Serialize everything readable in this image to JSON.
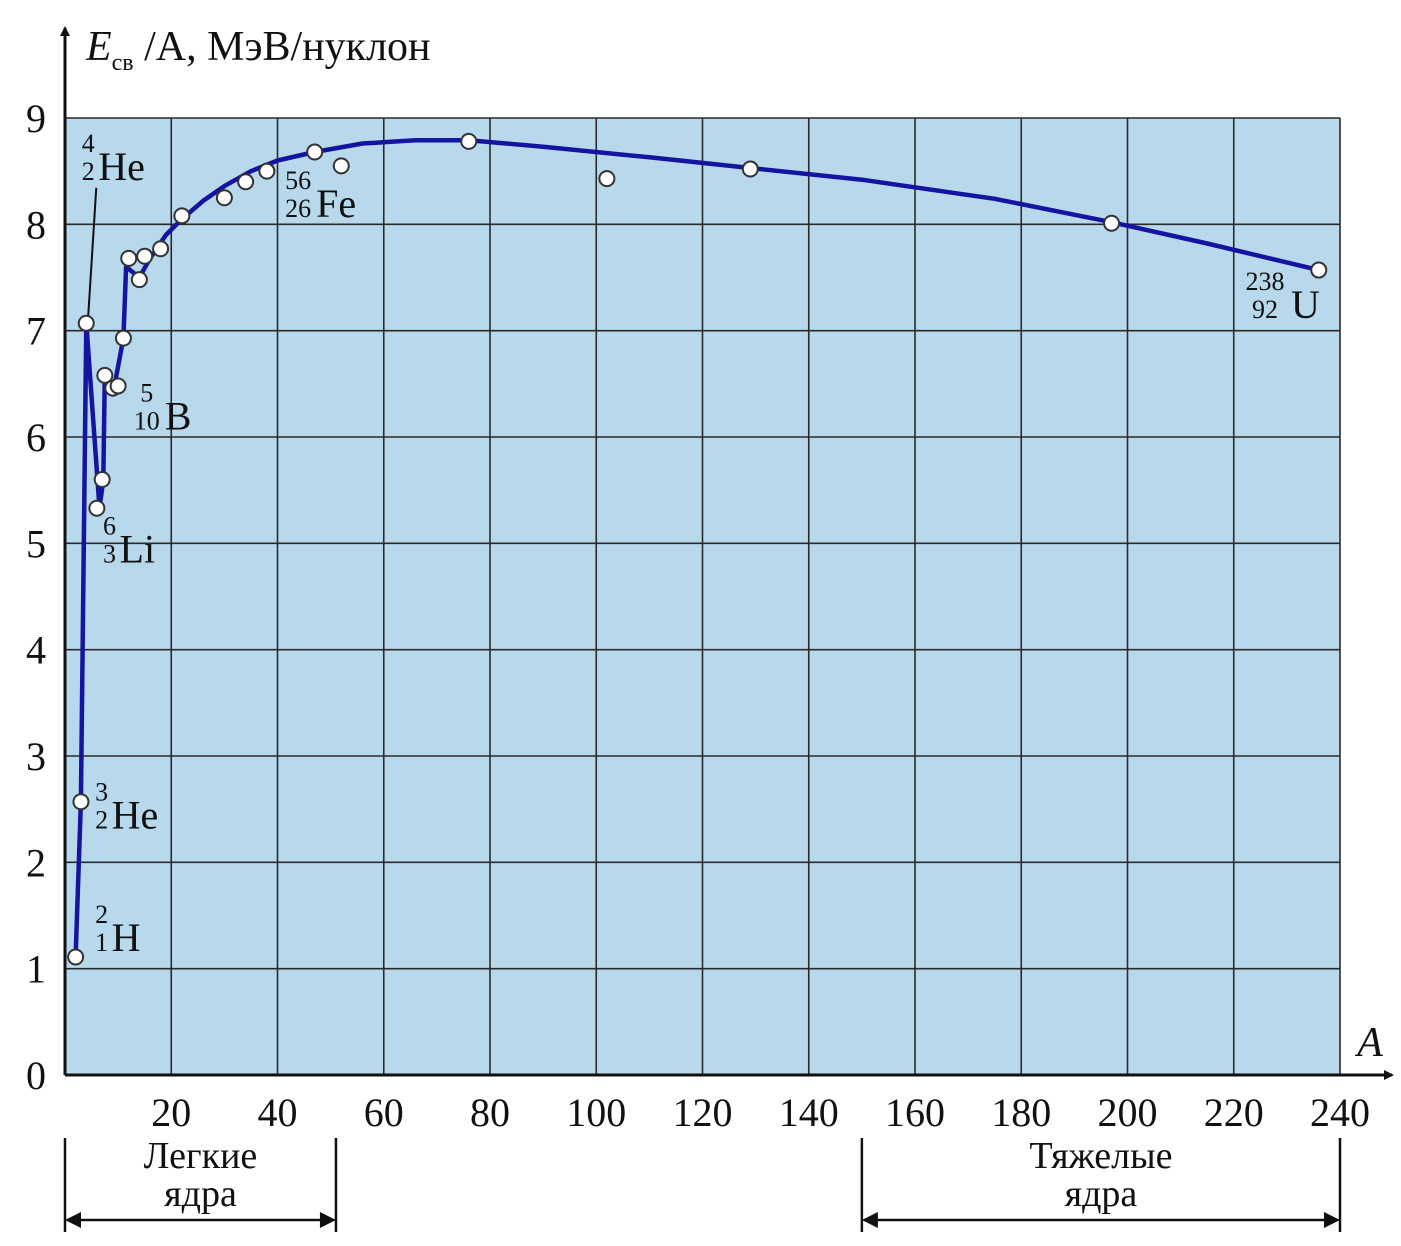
{
  "chart_data": {
    "type": "scatter",
    "title": "",
    "ylabel": {
      "main": "E",
      "sub": "св",
      "rest": " /A, МэВ/нуклон"
    },
    "xlabel": "A",
    "xlim": [
      0,
      240
    ],
    "ylim": [
      0,
      9
    ],
    "xticks": [
      20,
      40,
      60,
      80,
      100,
      120,
      140,
      160,
      180,
      200,
      220,
      240
    ],
    "yticks": [
      0,
      1,
      2,
      3,
      4,
      5,
      6,
      7,
      8,
      9
    ],
    "grid": true,
    "colors": {
      "plot_bg": "#b8d8ec",
      "grid": "#2a2a2a",
      "curve": "#1414a0",
      "marker_fill": "#ffffff",
      "marker_edge": "#333333"
    },
    "points": [
      {
        "x": 2,
        "y": 1.11
      },
      {
        "x": 3,
        "y": 2.57
      },
      {
        "x": 4,
        "y": 7.07
      },
      {
        "x": 6,
        "y": 5.33
      },
      {
        "x": 7,
        "y": 5.6
      },
      {
        "x": 7.5,
        "y": 6.58
      },
      {
        "x": 9,
        "y": 6.46
      },
      {
        "x": 10,
        "y": 6.48
      },
      {
        "x": 11,
        "y": 6.93
      },
      {
        "x": 12,
        "y": 7.68
      },
      {
        "x": 14,
        "y": 7.48
      },
      {
        "x": 15,
        "y": 7.7
      },
      {
        "x": 18,
        "y": 7.77
      },
      {
        "x": 22,
        "y": 8.08
      },
      {
        "x": 30,
        "y": 8.25
      },
      {
        "x": 34,
        "y": 8.4
      },
      {
        "x": 38,
        "y": 8.5
      },
      {
        "x": 47,
        "y": 8.68
      },
      {
        "x": 52,
        "y": 8.55
      },
      {
        "x": 76,
        "y": 8.78
      },
      {
        "x": 102,
        "y": 8.43
      },
      {
        "x": 129,
        "y": 8.52
      },
      {
        "x": 197,
        "y": 8.01
      },
      {
        "x": 236,
        "y": 7.57
      }
    ],
    "curve": [
      {
        "x": 2,
        "y": 1.11
      },
      {
        "x": 3,
        "y": 2.57
      },
      {
        "x": 4,
        "y": 7.07
      },
      {
        "x": 6.5,
        "y": 5.33
      },
      {
        "x": 7.2,
        "y": 5.6
      },
      {
        "x": 7.5,
        "y": 6.58
      },
      {
        "x": 9,
        "y": 6.4
      },
      {
        "x": 11,
        "y": 6.93
      },
      {
        "x": 11.5,
        "y": 7.6
      },
      {
        "x": 14,
        "y": 7.5
      },
      {
        "x": 16,
        "y": 7.68
      },
      {
        "x": 19,
        "y": 7.9
      },
      {
        "x": 22,
        "y": 8.05
      },
      {
        "x": 26,
        "y": 8.22
      },
      {
        "x": 30,
        "y": 8.36
      },
      {
        "x": 35,
        "y": 8.5
      },
      {
        "x": 40,
        "y": 8.6
      },
      {
        "x": 47,
        "y": 8.68
      },
      {
        "x": 56,
        "y": 8.76
      },
      {
        "x": 66,
        "y": 8.79
      },
      {
        "x": 76,
        "y": 8.79
      },
      {
        "x": 90,
        "y": 8.73
      },
      {
        "x": 110,
        "y": 8.63
      },
      {
        "x": 129,
        "y": 8.53
      },
      {
        "x": 150,
        "y": 8.42
      },
      {
        "x": 175,
        "y": 8.24
      },
      {
        "x": 197,
        "y": 8.02
      },
      {
        "x": 215,
        "y": 7.82
      },
      {
        "x": 236,
        "y": 7.57
      }
    ],
    "annotations": [
      {
        "mass": "2",
        "charge": "1",
        "symbol": "H",
        "x": 5,
        "y": 1.3
      },
      {
        "mass": "3",
        "charge": "2",
        "symbol": "He",
        "x": 5,
        "y": 2.45
      },
      {
        "mass": "4",
        "charge": "2",
        "symbol": "He",
        "x": 2.5,
        "y": 8.55
      },
      {
        "mass": "6",
        "charge": "3",
        "symbol": "Li",
        "x": 6.5,
        "y": 4.95
      },
      {
        "mass": "5",
        "charge": "10",
        "symbol": "B",
        "x": 13.5,
        "y": 6.2
      },
      {
        "mass": "56",
        "charge": "26",
        "symbol": "Fe",
        "x": 42,
        "y": 8.2
      },
      {
        "mass": "238",
        "charge": "92",
        "symbol": "U",
        "x": 224,
        "y": 7.25
      }
    ],
    "groups": [
      {
        "label_line1": "Легкие",
        "label_line2": "ядра",
        "x_from": 0,
        "x_to": 51
      },
      {
        "label_line1": "Тяжелые",
        "label_line2": "ядра",
        "x_from": 150,
        "x_to": 240
      }
    ]
  }
}
